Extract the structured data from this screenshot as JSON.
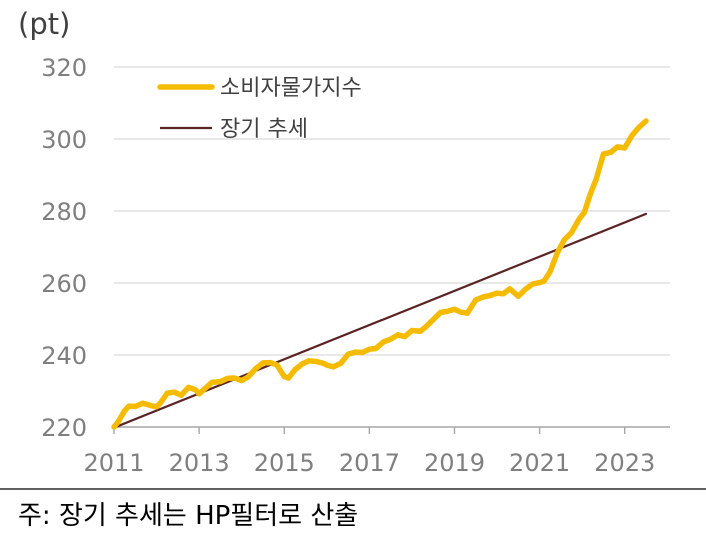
{
  "chart_data": {
    "type": "line",
    "unit_label": "(pt)",
    "ylim": [
      220,
      320
    ],
    "yticks": [
      220,
      240,
      260,
      280,
      300,
      320
    ],
    "xlim": [
      2011,
      2023.5
    ],
    "xticks": [
      2011,
      2013,
      2015,
      2017,
      2019,
      2021,
      2023
    ],
    "grid": "horizontal",
    "legend_position": "top-left",
    "note": "주: 장기 추세는 HP필터로 산출",
    "series": [
      {
        "name": "소비자물가지수",
        "color": "#f5bb00",
        "style": "thick",
        "points": [
          [
            2011.0,
            220.0
          ],
          [
            2011.1,
            221.5
          ],
          [
            2011.25,
            224.5
          ],
          [
            2011.35,
            225.8
          ],
          [
            2011.5,
            225.7
          ],
          [
            2011.67,
            226.6
          ],
          [
            2011.85,
            226.0
          ],
          [
            2012.0,
            225.6
          ],
          [
            2012.1,
            226.8
          ],
          [
            2012.25,
            229.4
          ],
          [
            2012.42,
            229.7
          ],
          [
            2012.58,
            228.8
          ],
          [
            2012.75,
            231.0
          ],
          [
            2012.92,
            230.3
          ],
          [
            2013.0,
            229.2
          ],
          [
            2013.15,
            230.8
          ],
          [
            2013.3,
            232.4
          ],
          [
            2013.5,
            232.6
          ],
          [
            2013.67,
            233.5
          ],
          [
            2013.83,
            233.6
          ],
          [
            2014.0,
            232.9
          ],
          [
            2014.15,
            233.9
          ],
          [
            2014.33,
            236.2
          ],
          [
            2014.5,
            237.8
          ],
          [
            2014.67,
            237.9
          ],
          [
            2014.83,
            237.2
          ],
          [
            2015.0,
            234.0
          ],
          [
            2015.1,
            233.6
          ],
          [
            2015.25,
            235.9
          ],
          [
            2015.42,
            237.5
          ],
          [
            2015.58,
            238.4
          ],
          [
            2015.75,
            238.2
          ],
          [
            2015.92,
            237.7
          ],
          [
            2016.0,
            237.2
          ],
          [
            2016.15,
            236.7
          ],
          [
            2016.33,
            237.7
          ],
          [
            2016.5,
            240.2
          ],
          [
            2016.67,
            240.8
          ],
          [
            2016.83,
            240.7
          ],
          [
            2017.0,
            241.6
          ],
          [
            2017.15,
            241.8
          ],
          [
            2017.33,
            243.6
          ],
          [
            2017.5,
            244.4
          ],
          [
            2017.67,
            245.6
          ],
          [
            2017.83,
            245.1
          ],
          [
            2018.0,
            246.8
          ],
          [
            2018.2,
            246.6
          ],
          [
            2018.33,
            247.9
          ],
          [
            2018.5,
            249.8
          ],
          [
            2018.67,
            251.8
          ],
          [
            2018.83,
            252.1
          ],
          [
            2019.0,
            252.7
          ],
          [
            2019.15,
            251.9
          ],
          [
            2019.3,
            251.6
          ],
          [
            2019.5,
            255.3
          ],
          [
            2019.67,
            256.1
          ],
          [
            2019.83,
            256.5
          ],
          [
            2020.0,
            257.2
          ],
          [
            2020.15,
            257.0
          ],
          [
            2020.3,
            258.4
          ],
          [
            2020.5,
            256.3
          ],
          [
            2020.67,
            258.3
          ],
          [
            2020.83,
            259.7
          ],
          [
            2021.0,
            260.1
          ],
          [
            2021.1,
            260.5
          ],
          [
            2021.25,
            263.2
          ],
          [
            2021.42,
            268.5
          ],
          [
            2021.58,
            272.0
          ],
          [
            2021.75,
            274.0
          ],
          [
            2021.92,
            277.6
          ],
          [
            2022.05,
            279.6
          ],
          [
            2022.2,
            285.0
          ],
          [
            2022.33,
            288.8
          ],
          [
            2022.5,
            295.8
          ],
          [
            2022.67,
            296.3
          ],
          [
            2022.83,
            297.8
          ],
          [
            2023.0,
            297.5
          ],
          [
            2023.17,
            301.0
          ],
          [
            2023.33,
            303.2
          ],
          [
            2023.5,
            305.0
          ]
        ]
      },
      {
        "name": "장기 추세",
        "color": "#5b2323",
        "style": "thin",
        "points": [
          [
            2011.0,
            219.8
          ],
          [
            2023.5,
            279.2
          ]
        ]
      }
    ]
  }
}
